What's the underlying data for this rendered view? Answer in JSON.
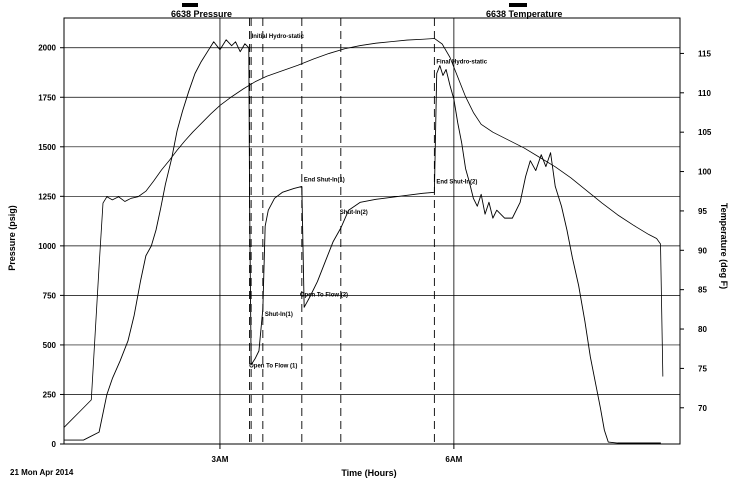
{
  "chart_data": {
    "type": "line",
    "date_label": "21 Mon Apr 2014",
    "xlabel": "Time (Hours)",
    "ylabel_left": "Pressure (psig)",
    "ylabel_right": "Temperature (deg F)",
    "legend": [
      {
        "name": "6638 Pressure",
        "color": "#000000"
      },
      {
        "name": "6638 Temperature",
        "color": "#000000"
      }
    ],
    "x_ticks": [
      {
        "label": "3AM",
        "hour": 3.0
      },
      {
        "label": "6AM",
        "hour": 6.0
      }
    ],
    "xlim": [
      1.0,
      8.9
    ],
    "ylim_left": [
      0,
      2150
    ],
    "ylim_right": [
      65.4,
      119.5
    ],
    "left_ticks": [
      0,
      250,
      500,
      750,
      1000,
      1250,
      1500,
      1750,
      2000
    ],
    "right_ticks": [
      70,
      75,
      80,
      85,
      90,
      95,
      100,
      105,
      110,
      115
    ],
    "grid": true,
    "vertical_markers": [
      {
        "label": "Initial Hydro-static",
        "hour": 3.38
      },
      {
        "label": "Open To Flow (1)",
        "hour": 3.4
      },
      {
        "label": "Shut-In(1)",
        "hour": 3.55
      },
      {
        "label": "End Shut-In(1)",
        "hour": 4.05
      },
      {
        "label": "Open To Flow (2)",
        "hour": 4.05
      },
      {
        "label": "Shut-In(2)",
        "hour": 4.55
      },
      {
        "label": "End Shut-In(2)",
        "hour": 5.75
      },
      {
        "label": "Final Hydro-static",
        "hour": 5.75
      }
    ],
    "series": [
      {
        "name": "6638 Pressure",
        "axis": "left",
        "points": [
          [
            1.0,
            20
          ],
          [
            1.25,
            20
          ],
          [
            1.45,
            60
          ],
          [
            1.55,
            250
          ],
          [
            1.62,
            330
          ],
          [
            1.72,
            420
          ],
          [
            1.82,
            520
          ],
          [
            1.9,
            650
          ],
          [
            1.98,
            820
          ],
          [
            2.05,
            950
          ],
          [
            2.12,
            1000
          ],
          [
            2.18,
            1080
          ],
          [
            2.24,
            1190
          ],
          [
            2.3,
            1310
          ],
          [
            2.38,
            1440
          ],
          [
            2.45,
            1580
          ],
          [
            2.52,
            1680
          ],
          [
            2.6,
            1780
          ],
          [
            2.68,
            1870
          ],
          [
            2.76,
            1930
          ],
          [
            2.84,
            1980
          ],
          [
            2.92,
            2030
          ],
          [
            3.0,
            1990
          ],
          [
            3.08,
            2040
          ],
          [
            3.15,
            2010
          ],
          [
            3.2,
            2030
          ],
          [
            3.26,
            1980
          ],
          [
            3.32,
            2020
          ],
          [
            3.37,
            2000
          ],
          [
            3.38,
            1240
          ],
          [
            3.4,
            400
          ],
          [
            3.45,
            430
          ],
          [
            3.5,
            470
          ],
          [
            3.55,
            680
          ],
          [
            3.58,
            1100
          ],
          [
            3.62,
            1180
          ],
          [
            3.7,
            1240
          ],
          [
            3.8,
            1270
          ],
          [
            3.95,
            1290
          ],
          [
            4.05,
            1300
          ],
          [
            4.08,
            690
          ],
          [
            4.15,
            740
          ],
          [
            4.25,
            820
          ],
          [
            4.35,
            920
          ],
          [
            4.45,
            1020
          ],
          [
            4.55,
            1090
          ],
          [
            4.65,
            1180
          ],
          [
            4.8,
            1220
          ],
          [
            5.0,
            1235
          ],
          [
            5.2,
            1245
          ],
          [
            5.4,
            1255
          ],
          [
            5.6,
            1265
          ],
          [
            5.75,
            1270
          ],
          [
            5.78,
            1870
          ],
          [
            5.82,
            1910
          ],
          [
            5.86,
            1860
          ],
          [
            5.9,
            1890
          ],
          [
            5.95,
            1810
          ],
          [
            6.0,
            1740
          ],
          [
            6.05,
            1620
          ],
          [
            6.1,
            1520
          ],
          [
            6.15,
            1390
          ],
          [
            6.2,
            1320
          ],
          [
            6.25,
            1240
          ],
          [
            6.3,
            1200
          ],
          [
            6.35,
            1260
          ],
          [
            6.4,
            1160
          ],
          [
            6.45,
            1220
          ],
          [
            6.5,
            1140
          ],
          [
            6.55,
            1180
          ],
          [
            6.65,
            1140
          ],
          [
            6.75,
            1140
          ],
          [
            6.85,
            1220
          ],
          [
            6.92,
            1350
          ],
          [
            6.98,
            1430
          ],
          [
            7.05,
            1380
          ],
          [
            7.12,
            1460
          ],
          [
            7.18,
            1400
          ],
          [
            7.24,
            1470
          ],
          [
            7.3,
            1300
          ],
          [
            7.38,
            1200
          ],
          [
            7.45,
            1080
          ],
          [
            7.52,
            940
          ],
          [
            7.6,
            800
          ],
          [
            7.68,
            620
          ],
          [
            7.75,
            440
          ],
          [
            7.82,
            300
          ],
          [
            7.88,
            180
          ],
          [
            7.93,
            70
          ],
          [
            7.98,
            10
          ],
          [
            8.1,
            5
          ],
          [
            8.3,
            5
          ],
          [
            8.5,
            5
          ],
          [
            8.65,
            5
          ]
        ]
      },
      {
        "name": "6638 Temperature",
        "axis": "right",
        "points": [
          [
            1.0,
            67.5
          ],
          [
            1.1,
            68.5
          ],
          [
            1.2,
            69.5
          ],
          [
            1.35,
            71.0
          ],
          [
            1.45,
            88.0
          ],
          [
            1.5,
            96.0
          ],
          [
            1.55,
            96.8
          ],
          [
            1.62,
            96.4
          ],
          [
            1.7,
            96.8
          ],
          [
            1.78,
            96.2
          ],
          [
            1.86,
            96.6
          ],
          [
            1.95,
            96.8
          ],
          [
            2.05,
            97.5
          ],
          [
            2.15,
            98.8
          ],
          [
            2.25,
            100.2
          ],
          [
            2.35,
            101.4
          ],
          [
            2.45,
            102.7
          ],
          [
            2.55,
            103.9
          ],
          [
            2.65,
            105.0
          ],
          [
            2.75,
            106.0
          ],
          [
            2.88,
            107.3
          ],
          [
            3.0,
            108.4
          ],
          [
            3.15,
            109.5
          ],
          [
            3.3,
            110.5
          ],
          [
            3.45,
            111.4
          ],
          [
            3.6,
            112.1
          ],
          [
            3.8,
            112.8
          ],
          [
            4.0,
            113.5
          ],
          [
            4.2,
            114.3
          ],
          [
            4.4,
            115.0
          ],
          [
            4.6,
            115.6
          ],
          [
            4.8,
            116.0
          ],
          [
            5.0,
            116.3
          ],
          [
            5.2,
            116.5
          ],
          [
            5.4,
            116.7
          ],
          [
            5.6,
            116.8
          ],
          [
            5.75,
            116.9
          ],
          [
            5.85,
            116.2
          ],
          [
            5.95,
            114.5
          ],
          [
            6.05,
            112.0
          ],
          [
            6.15,
            109.5
          ],
          [
            6.25,
            107.5
          ],
          [
            6.35,
            106.0
          ],
          [
            6.5,
            105.0
          ],
          [
            6.7,
            104.0
          ],
          [
            6.9,
            103.0
          ],
          [
            7.1,
            101.8
          ],
          [
            7.3,
            100.6
          ],
          [
            7.5,
            99.2
          ],
          [
            7.7,
            97.6
          ],
          [
            7.9,
            96.0
          ],
          [
            8.1,
            94.5
          ],
          [
            8.3,
            93.2
          ],
          [
            8.5,
            92.0
          ],
          [
            8.6,
            91.5
          ],
          [
            8.65,
            90.8
          ],
          [
            8.68,
            74.0
          ]
        ]
      }
    ]
  }
}
